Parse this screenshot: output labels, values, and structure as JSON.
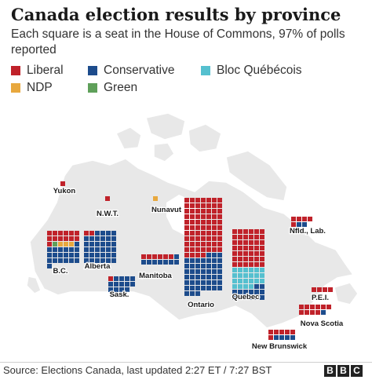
{
  "title": "Canada election results by province",
  "subtitle": "Each square is a seat in the House of Commons, 97% of polls reported",
  "colors": {
    "liberal": "#c0222a",
    "conservative": "#1d4c8c",
    "bloc": "#55c0cf",
    "ndp": "#e8a83e",
    "green": "#5fa05a",
    "land": "#e8e8e8",
    "border": "#ffffff"
  },
  "legend": [
    {
      "label": "Liberal",
      "party": "liberal"
    },
    {
      "label": "Conservative",
      "party": "conservative"
    },
    {
      "label": "Bloc Québécois",
      "party": "bloc"
    },
    {
      "label": "NDP",
      "party": "ndp"
    },
    {
      "label": "Green",
      "party": "green"
    }
  ],
  "provinces": [
    {
      "name": "Yukon",
      "seats": [
        {
          "party": "liberal",
          "count": 1
        }
      ]
    },
    {
      "name": "N.W.T.",
      "seats": [
        {
          "party": "liberal",
          "count": 1
        }
      ]
    },
    {
      "name": "Nunavut",
      "seats": [
        {
          "party": "ndp",
          "count": 1
        }
      ]
    },
    {
      "name": "B.C.",
      "seats": [
        {
          "party": "liberal",
          "count": 13
        },
        {
          "party": "green",
          "count": 1
        },
        {
          "party": "ndp",
          "count": 3
        },
        {
          "party": "conservative",
          "count": 20
        }
      ]
    },
    {
      "name": "Alberta",
      "seats": [
        {
          "party": "liberal",
          "count": 2
        },
        {
          "party": "conservative",
          "count": 34
        }
      ]
    },
    {
      "name": "Sask.",
      "seats": [
        {
          "party": "liberal",
          "count": 1
        },
        {
          "party": "conservative",
          "count": 13
        }
      ]
    },
    {
      "name": "Manitoba",
      "seats": [
        {
          "party": "liberal",
          "count": 6
        },
        {
          "party": "conservative",
          "count": 8
        }
      ]
    },
    {
      "name": "Ontario",
      "seats": [
        {
          "party": "liberal",
          "count": 74
        },
        {
          "party": "conservative",
          "count": 48
        }
      ]
    },
    {
      "name": "Quebec",
      "seats": [
        {
          "party": "liberal",
          "count": 42
        },
        {
          "party": "bloc",
          "count": 22
        },
        {
          "party": "conservative",
          "count": 14
        }
      ]
    },
    {
      "name": "Nfld., Lab.",
      "seats": [
        {
          "party": "liberal",
          "count": 5
        },
        {
          "party": "conservative",
          "count": 2
        }
      ]
    },
    {
      "name": "P.E.I.",
      "seats": [
        {
          "party": "liberal",
          "count": 4
        }
      ]
    },
    {
      "name": "Nova Scotia",
      "seats": [
        {
          "party": "liberal",
          "count": 10
        },
        {
          "party": "conservative",
          "count": 1
        }
      ]
    },
    {
      "name": "New Brunswick",
      "seats": [
        {
          "party": "liberal",
          "count": 6
        },
        {
          "party": "conservative",
          "count": 4
        }
      ]
    }
  ],
  "source": "Source: Elections Canada, last updated  2:27 ET / 7:27 BST",
  "logo": [
    "B",
    "B",
    "C"
  ]
}
